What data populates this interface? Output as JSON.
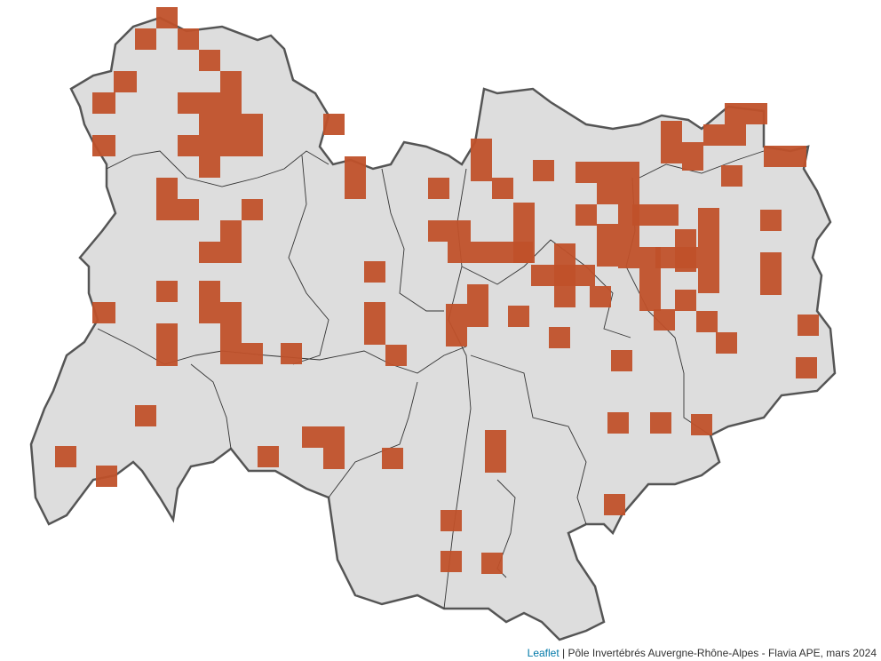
{
  "map": {
    "region_fill": "#dddddd",
    "region_stroke": "#555555",
    "cell_color": "#c0512a"
  },
  "attribution": {
    "leaflet_link": "Leaflet",
    "separator": " | ",
    "text": "Pôle Invertébrés Auvergne-Rhône-Alpes - Flavia APE, mars 2024"
  }
}
